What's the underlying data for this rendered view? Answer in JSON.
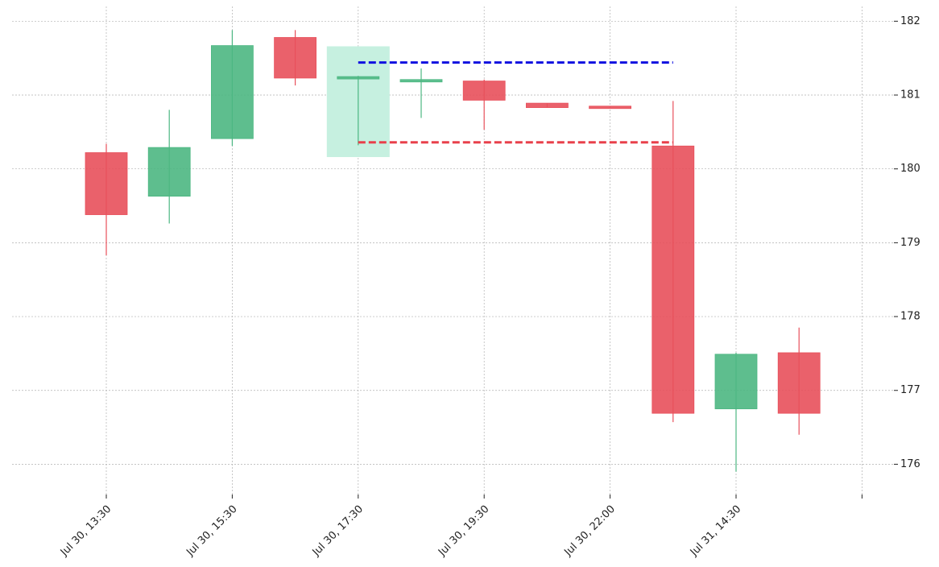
{
  "chart_data": {
    "type": "candlestick",
    "categories": [
      "Jul 30, 13:30",
      null,
      "Jul 30, 15:30",
      null,
      "Jul 30, 17:30",
      null,
      "Jul 30, 19:30",
      null,
      "Jul 30, 22:00",
      null,
      "Jul 31, 14:30",
      null,
      null
    ],
    "open": [
      180.22,
      179.63,
      180.41,
      181.78,
      181.23,
      181.19,
      181.19,
      180.89,
      180.85,
      180.31,
      176.75,
      177.51,
      null
    ],
    "high": [
      180.34,
      180.8,
      181.88,
      181.88,
      181.26,
      181.36,
      181.21,
      180.89,
      180.85,
      180.92,
      177.51,
      177.85,
      null
    ],
    "low": [
      178.83,
      179.26,
      180.31,
      181.13,
      180.32,
      180.69,
      180.53,
      180.83,
      180.84,
      176.57,
      175.9,
      176.4,
      null
    ],
    "close": [
      179.38,
      180.29,
      181.67,
      181.23,
      181.25,
      181.21,
      180.93,
      180.83,
      180.84,
      176.69,
      177.49,
      176.69,
      null
    ],
    "up_color": "#4cb782",
    "down_color": "#e8505b",
    "ylim": [
      175.59,
      182.2
    ],
    "yticks": [
      176,
      177,
      178,
      179,
      180,
      181,
      182
    ],
    "grid": true,
    "highlight": {
      "index": 4,
      "top": 181.66,
      "bottom": 180.16,
      "color": "#c6f0e0"
    },
    "levels": [
      {
        "value": 181.44,
        "from": 4,
        "to": 9,
        "color": "#1010e0"
      },
      {
        "value": 180.36,
        "from": 4,
        "to": 9,
        "color": "#e8404b"
      }
    ]
  }
}
